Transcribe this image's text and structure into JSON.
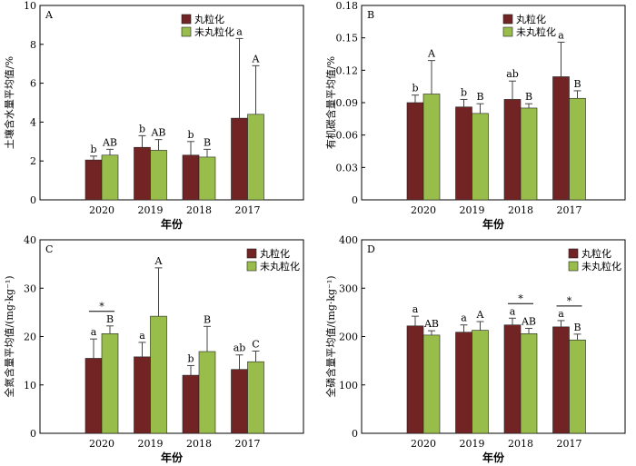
{
  "colors": {
    "series0": "#722424",
    "series1": "#98bd4a"
  },
  "chart_data": [
    {
      "type": "bar",
      "panel": "A",
      "categories": [
        "2020",
        "2019",
        "2018",
        "2017"
      ],
      "series": [
        {
          "name": "丸粒化",
          "values": [
            2.05,
            2.7,
            2.3,
            4.2
          ],
          "errors": [
            0.2,
            0.6,
            0.7,
            4.1
          ],
          "labels": [
            "b",
            "b",
            "b",
            "a"
          ]
        },
        {
          "name": "未丸粒化",
          "values": [
            2.3,
            2.55,
            2.2,
            4.4
          ],
          "errors": [
            0.3,
            0.55,
            0.4,
            2.5
          ],
          "labels": [
            "AB",
            "AB",
            "B",
            "A"
          ]
        }
      ],
      "xlabel": "年份",
      "ylabel": "土壤含水量平均值/%",
      "ylim": [
        0,
        10
      ],
      "yticks": [
        "0",
        "2",
        "4",
        "6",
        "8",
        "10"
      ],
      "sig": [],
      "legend": "top-center"
    },
    {
      "type": "bar",
      "panel": "B",
      "categories": [
        "2020",
        "2019",
        "2018",
        "2017"
      ],
      "series": [
        {
          "name": "丸粒化",
          "values": [
            0.09,
            0.086,
            0.093,
            0.114
          ],
          "errors": [
            0.007,
            0.007,
            0.017,
            0.032
          ],
          "labels": [
            "b",
            "b",
            "ab",
            "a"
          ]
        },
        {
          "name": "未丸粒化",
          "values": [
            0.098,
            0.08,
            0.085,
            0.094
          ],
          "errors": [
            0.031,
            0.009,
            0.004,
            0.007
          ],
          "labels": [
            "A",
            "B",
            "B",
            "B"
          ]
        }
      ],
      "xlabel": "年份",
      "ylabel": "有机碳含量平均值/%",
      "ylim": [
        0,
        0.18
      ],
      "yticks": [
        "0",
        "0.03",
        "0.06",
        "0.09",
        "0.12",
        "0.15",
        "0.18"
      ],
      "sig": [],
      "legend": "top-center"
    },
    {
      "type": "bar",
      "panel": "C",
      "categories": [
        "2020",
        "2019",
        "2018",
        "2017"
      ],
      "series": [
        {
          "name": "丸粒化",
          "values": [
            15.5,
            15.8,
            12.0,
            13.2
          ],
          "errors": [
            4.0,
            3.0,
            2.0,
            3.0
          ],
          "labels": [
            "a",
            "a",
            "b",
            "ab"
          ]
        },
        {
          "name": "未丸粒化",
          "values": [
            20.6,
            24.2,
            16.9,
            14.8
          ],
          "errors": [
            1.6,
            10.0,
            5.2,
            2.2
          ],
          "labels": [
            "B",
            "A",
            "B",
            "C"
          ]
        }
      ],
      "xlabel": "年份",
      "ylabel": "全氮含量平均值/(mg·kg⁻¹)",
      "ylim": [
        0,
        40
      ],
      "yticks": [
        "0",
        "10",
        "20",
        "30",
        "40"
      ],
      "sig": [
        0
      ],
      "sig_label": "*",
      "legend": "top-right"
    },
    {
      "type": "bar",
      "panel": "D",
      "categories": [
        "2020",
        "2019",
        "2018",
        "2017"
      ],
      "series": [
        {
          "name": "丸粒化",
          "values": [
            222,
            209,
            224,
            220
          ],
          "errors": [
            20,
            15,
            14,
            13
          ],
          "labels": [
            "a",
            "a",
            "a",
            "a"
          ]
        },
        {
          "name": "未丸粒化",
          "values": [
            203,
            213,
            206,
            193
          ],
          "errors": [
            9,
            18,
            11,
            12
          ],
          "labels": [
            "AB",
            "A",
            "AB",
            "B"
          ]
        }
      ],
      "xlabel": "年份",
      "ylabel": "全磷含量平均值/(mg·kg⁻¹)",
      "ylim": [
        0,
        400
      ],
      "yticks": [
        "0",
        "100",
        "200",
        "300",
        "400"
      ],
      "sig": [
        2,
        3
      ],
      "sig_label": "*",
      "legend": "top-right"
    }
  ]
}
